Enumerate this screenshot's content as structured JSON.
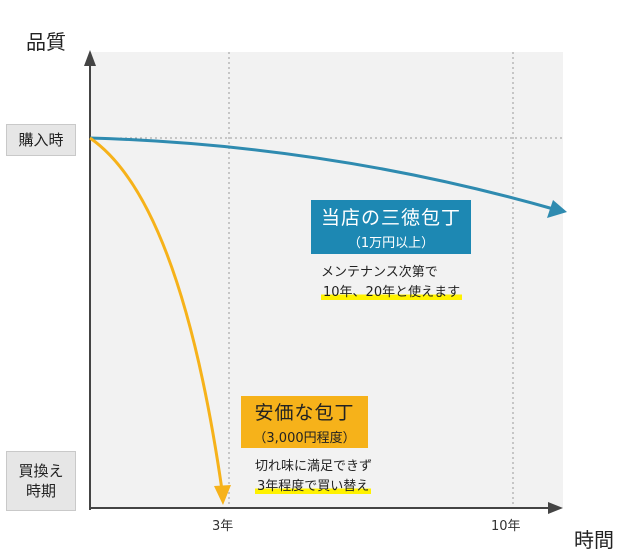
{
  "axis_title_y": "品質",
  "axis_title_x": "時間",
  "y_labels": {
    "purchase": "購入時",
    "replace_line1": "買換え",
    "replace_line2": "時期"
  },
  "x_ticks": [
    "3年",
    "10年"
  ],
  "santoku": {
    "title": "当店の三徳包丁",
    "subtitle": "（1万円以上）",
    "note_line1": "メンテナンス次第で",
    "note_line2": "10年、20年と使えます"
  },
  "cheap": {
    "title": "安価な包丁",
    "subtitle": "（3,000円程度）",
    "note_line1": "切れ味に満足できず",
    "note_line2": "3年程度で買い替え"
  },
  "colors": {
    "santoku_curve": "#2f8bb0",
    "cheap_curve": "#f6b21a",
    "plot_bg": "#f2f2f2"
  }
}
